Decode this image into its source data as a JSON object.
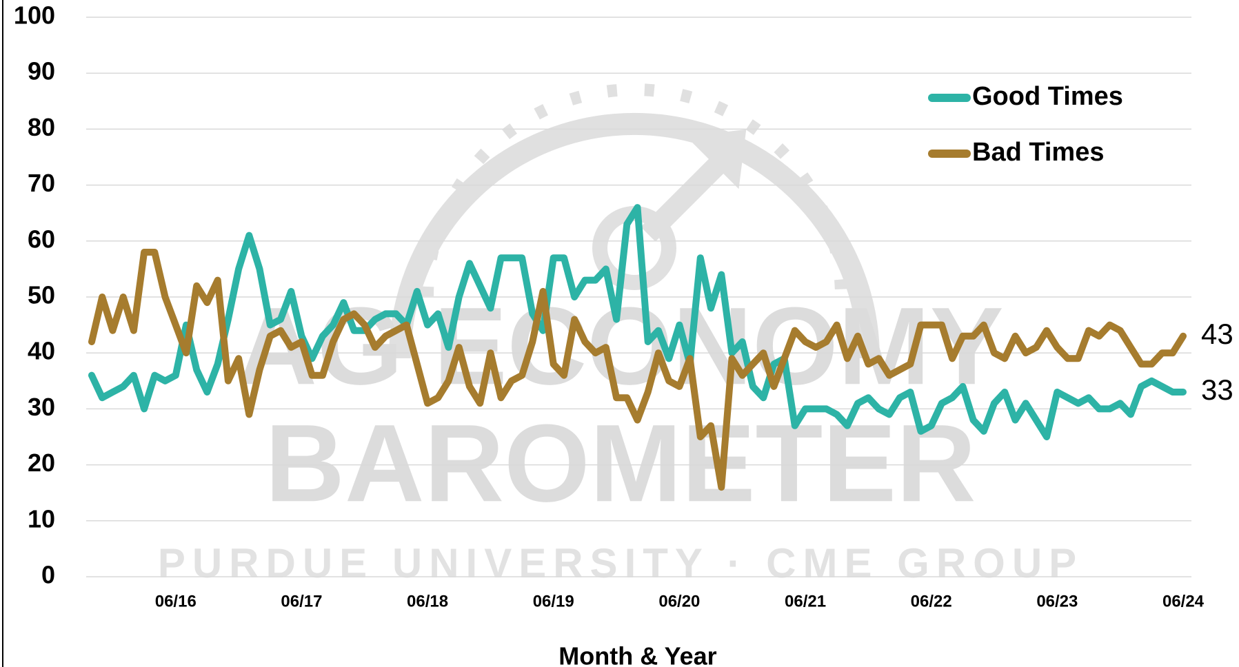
{
  "chart_data": {
    "type": "line",
    "x_label": "Month & Year",
    "watermark": [
      "AG ECONOMY",
      "BAROMETER",
      "PURDUE UNIVERSITY · CME GROUP"
    ],
    "categories": [
      null,
      null,
      null,
      null,
      null,
      null,
      null,
      null,
      "06/16",
      null,
      null,
      null,
      null,
      null,
      null,
      null,
      null,
      null,
      null,
      null,
      "06/17",
      null,
      null,
      null,
      null,
      null,
      null,
      null,
      null,
      null,
      null,
      null,
      "06/18",
      null,
      null,
      null,
      null,
      null,
      null,
      null,
      null,
      null,
      null,
      null,
      "06/19",
      null,
      null,
      null,
      null,
      null,
      null,
      null,
      null,
      null,
      null,
      null,
      "06/20",
      null,
      null,
      null,
      null,
      null,
      null,
      null,
      null,
      null,
      null,
      null,
      "06/21",
      null,
      null,
      null,
      null,
      null,
      null,
      null,
      null,
      null,
      null,
      null,
      "06/22",
      null,
      null,
      null,
      null,
      null,
      null,
      null,
      null,
      null,
      null,
      null,
      "06/23",
      null,
      null,
      null,
      null,
      null,
      null,
      null,
      null,
      null,
      null,
      null,
      "06/24"
    ],
    "series": [
      {
        "name": "Good Times",
        "color": "#2db3a6",
        "values": [
          36,
          32,
          33,
          34,
          36,
          30,
          36,
          35,
          36,
          45,
          37,
          33,
          38,
          46,
          55,
          61,
          55,
          45,
          46,
          51,
          43,
          39,
          43,
          45,
          49,
          44,
          44,
          46,
          47,
          47,
          45,
          51,
          45,
          47,
          41,
          50,
          56,
          52,
          48,
          57,
          57,
          57,
          47,
          44,
          57,
          57,
          50,
          53,
          53,
          55,
          46,
          63,
          66,
          42,
          44,
          39,
          45,
          38,
          57,
          48,
          54,
          40,
          42,
          34,
          32,
          38,
          39,
          27,
          30,
          30,
          30,
          29,
          27,
          31,
          32,
          30,
          29,
          32,
          33,
          26,
          27,
          31,
          32,
          34,
          28,
          26,
          31,
          33,
          28,
          31,
          28,
          25,
          33,
          32,
          31,
          32,
          30,
          30,
          31,
          29,
          34,
          35,
          34,
          33,
          33
        ]
      },
      {
        "name": "Bad Times",
        "color": "#a67c2e",
        "values": [
          42,
          50,
          44,
          50,
          44,
          58,
          58,
          50,
          45,
          40,
          52,
          49,
          53,
          35,
          39,
          29,
          37,
          43,
          44,
          41,
          42,
          36,
          36,
          42,
          46,
          47,
          45,
          41,
          43,
          44,
          45,
          38,
          31,
          32,
          35,
          41,
          34,
          31,
          40,
          32,
          35,
          36,
          42,
          51,
          38,
          36,
          46,
          42,
          40,
          41,
          32,
          32,
          28,
          33,
          40,
          35,
          34,
          39,
          25,
          27,
          16,
          39,
          36,
          38,
          40,
          34,
          39,
          44,
          42,
          41,
          42,
          45,
          39,
          43,
          38,
          39,
          36,
          37,
          38,
          45,
          45,
          45,
          39,
          43,
          43,
          45,
          40,
          39,
          43,
          40,
          41,
          44,
          41,
          39,
          39,
          44,
          43,
          45,
          44,
          41,
          38,
          38,
          40,
          40,
          43
        ]
      }
    ],
    "ylim": [
      0,
      100
    ],
    "yticks": [
      0,
      10,
      20,
      30,
      40,
      50,
      60,
      70,
      80,
      90,
      100
    ],
    "grid": true,
    "legend": "upper right"
  }
}
